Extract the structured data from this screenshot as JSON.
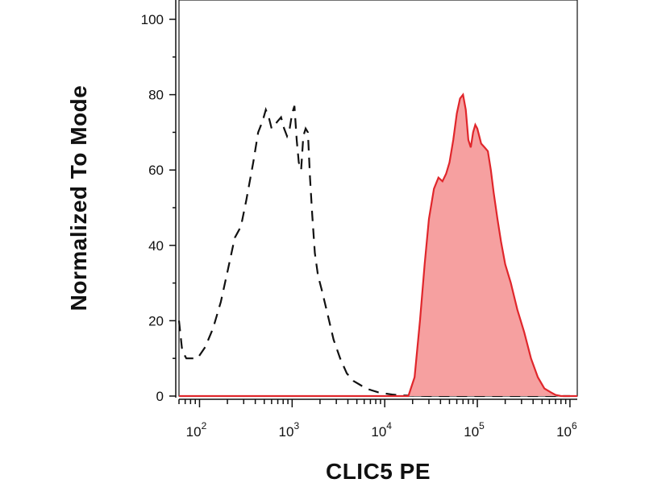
{
  "chart_data": {
    "type": "area",
    "xlabel": "CLIC5 PE",
    "ylabel": "Normalized To Mode",
    "xscale": "log",
    "xlim": [
      60,
      1200000
    ],
    "ylim": [
      0,
      105
    ],
    "y_ticks": [
      0,
      20,
      40,
      60,
      80,
      100
    ],
    "x_ticks": [
      {
        "value": 100,
        "base": "10",
        "exp": "2"
      },
      {
        "value": 1000,
        "base": "10",
        "exp": "3"
      },
      {
        "value": 10000,
        "base": "10",
        "exp": "4"
      },
      {
        "value": 100000,
        "base": "10",
        "exp": "5"
      },
      {
        "value": 1000000,
        "base": "10",
        "exp": "6"
      }
    ],
    "grid": false,
    "series": [
      {
        "style": "dashed-outline",
        "color": "#111111",
        "x": [
          60,
          65,
          72,
          80,
          95,
          115,
          140,
          170,
          200,
          240,
          280,
          320,
          380,
          430,
          480,
          520,
          560,
          600,
          650,
          700,
          760,
          820,
          880,
          940,
          1000,
          1060,
          1120,
          1180,
          1250,
          1320,
          1400,
          1480,
          1560,
          1650,
          1760,
          1900,
          2100,
          2400,
          2800,
          3300,
          3900,
          4600,
          5400,
          6300,
          7300,
          8500,
          10000,
          12000,
          15000,
          20000,
          30000,
          50000,
          100000,
          300000,
          1000000
        ],
        "values": [
          20,
          12,
          10,
          10,
          10,
          13,
          18,
          25,
          33,
          42,
          45,
          52,
          62,
          70,
          73,
          76,
          74,
          71,
          72,
          73,
          74,
          71,
          69,
          71,
          75,
          77,
          68,
          62,
          60,
          69,
          71,
          70,
          58,
          48,
          38,
          32,
          28,
          22,
          15,
          10,
          6,
          4,
          3,
          2,
          1.5,
          1,
          0.7,
          0.4,
          0.2,
          0.1,
          0,
          0,
          0,
          0,
          0
        ]
      },
      {
        "style": "filled",
        "color": "#e0262b",
        "fill": "#f6a0a0",
        "x": [
          60,
          10000,
          18000,
          21000,
          24000,
          27000,
          30000,
          34000,
          38000,
          42000,
          46000,
          50000,
          55000,
          60000,
          65000,
          70000,
          75000,
          80000,
          85000,
          90000,
          95000,
          100000,
          110000,
          120000,
          130000,
          140000,
          150000,
          165000,
          180000,
          200000,
          230000,
          270000,
          320000,
          380000,
          450000,
          530000,
          620000,
          700000,
          800000,
          1000000,
          1200000
        ],
        "values": [
          0,
          0,
          0,
          5,
          20,
          35,
          47,
          55,
          58,
          57,
          59,
          62,
          68,
          75,
          79,
          80,
          76,
          68,
          66,
          70,
          72,
          71,
          67,
          66,
          65,
          60,
          54,
          47,
          41,
          35,
          30,
          23,
          17,
          10,
          5,
          2,
          1,
          0.3,
          0,
          0,
          0
        ]
      }
    ]
  }
}
